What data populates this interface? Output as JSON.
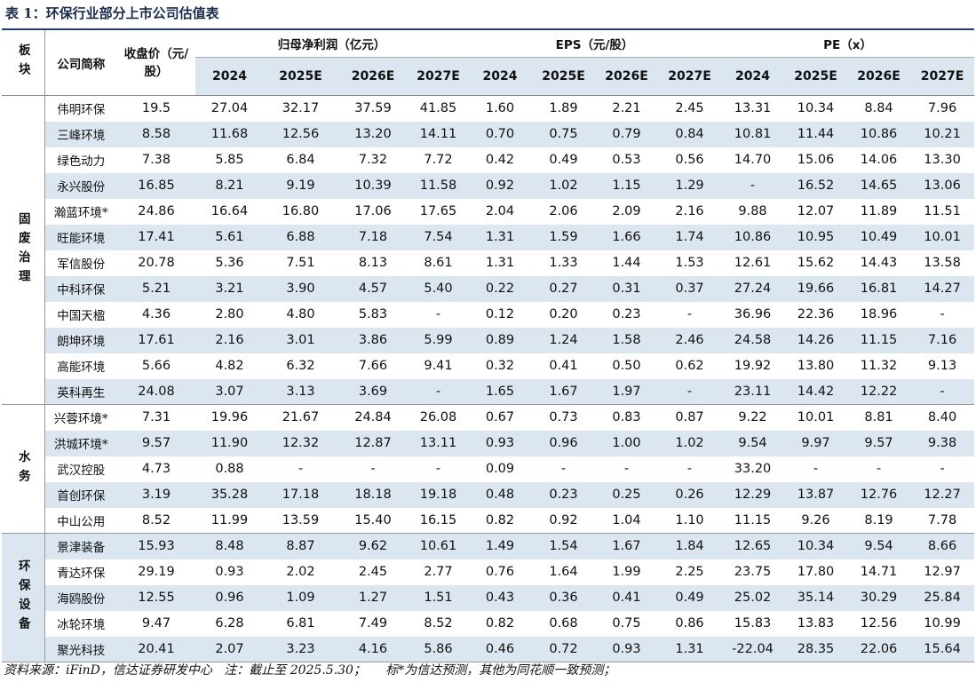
{
  "title": "表 1：环保行业部分上市公司估值表",
  "header": {
    "sector": "板块",
    "company": "公司简称",
    "price": "收盘价（元/股）",
    "groups": [
      {
        "title": "归母净利润（亿元）",
        "years": [
          "2024",
          "2025E",
          "2026E",
          "2027E"
        ]
      },
      {
        "title": "EPS（元/股）",
        "years": [
          "2024",
          "2025E",
          "2026E",
          "2027E"
        ]
      },
      {
        "title": "PE（x）",
        "years": [
          "2024",
          "2025E",
          "2026E",
          "2027E"
        ]
      }
    ]
  },
  "table": {
    "groups": [
      {
        "name": "固废治理",
        "rows": [
          [
            "伟明环保",
            "19.5",
            "27.04",
            "32.17",
            "37.59",
            "41.85",
            "1.60",
            "1.89",
            "2.21",
            "2.45",
            "13.31",
            "10.34",
            "8.84",
            "7.96"
          ],
          [
            "三峰环境",
            "8.58",
            "11.68",
            "12.56",
            "13.20",
            "14.11",
            "0.70",
            "0.75",
            "0.79",
            "0.84",
            "10.81",
            "11.44",
            "10.86",
            "10.21"
          ],
          [
            "绿色动力",
            "7.38",
            "5.85",
            "6.84",
            "7.32",
            "7.72",
            "0.42",
            "0.49",
            "0.53",
            "0.56",
            "14.70",
            "15.06",
            "14.06",
            "13.30"
          ],
          [
            "永兴股份",
            "16.85",
            "8.21",
            "9.19",
            "10.39",
            "11.58",
            "0.92",
            "1.02",
            "1.15",
            "1.29",
            "-",
            "16.52",
            "14.65",
            "13.06"
          ],
          [
            "瀚蓝环境*",
            "24.86",
            "16.64",
            "16.80",
            "17.06",
            "17.65",
            "2.04",
            "2.06",
            "2.09",
            "2.16",
            "9.88",
            "12.07",
            "11.89",
            "11.51"
          ],
          [
            "旺能环境",
            "17.41",
            "5.61",
            "6.88",
            "7.18",
            "7.54",
            "1.31",
            "1.59",
            "1.66",
            "1.74",
            "10.86",
            "10.95",
            "10.49",
            "10.01"
          ],
          [
            "军信股份",
            "20.78",
            "5.36",
            "7.51",
            "8.13",
            "8.61",
            "1.31",
            "1.33",
            "1.44",
            "1.53",
            "12.61",
            "15.62",
            "14.43",
            "13.58"
          ],
          [
            "中科环保",
            "5.21",
            "3.21",
            "3.90",
            "4.57",
            "5.40",
            "0.22",
            "0.27",
            "0.31",
            "0.37",
            "27.24",
            "19.66",
            "16.81",
            "14.27"
          ],
          [
            "中国天楹",
            "4.36",
            "2.80",
            "4.80",
            "5.83",
            "-",
            "0.12",
            "0.20",
            "0.23",
            "-",
            "36.96",
            "22.36",
            "18.96",
            "-"
          ],
          [
            "朗坤环境",
            "17.61",
            "2.16",
            "3.01",
            "3.86",
            "5.99",
            "0.89",
            "1.24",
            "1.58",
            "2.46",
            "24.58",
            "14.26",
            "11.15",
            "7.16"
          ],
          [
            "高能环境",
            "5.66",
            "4.82",
            "6.32",
            "7.66",
            "9.41",
            "0.32",
            "0.41",
            "0.50",
            "0.62",
            "19.92",
            "13.80",
            "11.32",
            "9.13"
          ],
          [
            "英科再生",
            "24.08",
            "3.07",
            "3.13",
            "3.69",
            "-",
            "1.65",
            "1.67",
            "1.97",
            "-",
            "23.11",
            "14.42",
            "12.22",
            "-"
          ]
        ]
      },
      {
        "name": "水务",
        "rows": [
          [
            "兴蓉环境*",
            "7.31",
            "19.96",
            "21.67",
            "24.84",
            "26.08",
            "0.67",
            "0.73",
            "0.83",
            "0.87",
            "9.22",
            "10.01",
            "8.81",
            "8.40"
          ],
          [
            "洪城环境*",
            "9.57",
            "11.90",
            "12.32",
            "12.87",
            "13.11",
            "0.93",
            "0.96",
            "1.00",
            "1.02",
            "9.54",
            "9.97",
            "9.57",
            "9.38"
          ],
          [
            "武汉控股",
            "4.73",
            "0.88",
            "-",
            "-",
            "-",
            "0.09",
            "-",
            "-",
            "-",
            "33.20",
            "-",
            "-",
            "-"
          ],
          [
            "首创环保",
            "3.19",
            "35.28",
            "17.18",
            "18.18",
            "19.18",
            "0.48",
            "0.23",
            "0.25",
            "0.26",
            "12.29",
            "13.87",
            "12.76",
            "12.27"
          ],
          [
            "中山公用",
            "8.52",
            "11.99",
            "13.59",
            "15.40",
            "16.15",
            "0.82",
            "0.92",
            "1.04",
            "1.10",
            "11.15",
            "9.26",
            "8.19",
            "7.78"
          ]
        ]
      },
      {
        "name": "环保设备",
        "rows": [
          [
            "景津装备",
            "15.93",
            "8.48",
            "8.87",
            "9.62",
            "10.61",
            "1.49",
            "1.54",
            "1.67",
            "1.84",
            "12.65",
            "10.34",
            "9.54",
            "8.66"
          ],
          [
            "青达环保",
            "29.19",
            "0.93",
            "2.02",
            "2.45",
            "2.77",
            "0.76",
            "1.64",
            "1.99",
            "2.25",
            "23.75",
            "17.80",
            "14.71",
            "12.97"
          ],
          [
            "海鸥股份",
            "12.55",
            "0.96",
            "1.09",
            "1.27",
            "1.51",
            "0.43",
            "0.36",
            "0.41",
            "0.49",
            "25.02",
            "35.14",
            "30.29",
            "25.84"
          ],
          [
            "冰轮环境",
            "9.47",
            "6.28",
            "6.81",
            "7.49",
            "8.52",
            "0.82",
            "0.68",
            "0.75",
            "0.86",
            "15.83",
            "13.83",
            "12.56",
            "10.99"
          ],
          [
            "聚光科技",
            "20.41",
            "2.07",
            "3.23",
            "4.16",
            "5.86",
            "0.46",
            "0.72",
            "0.93",
            "1.31",
            "-22.04",
            "28.35",
            "22.06",
            "15.64"
          ]
        ]
      }
    ]
  },
  "footer": "资料来源：iFinD，信达证券研发中心   注：截止至 2025.5.30；     标*为信达预测，其他为同花顺一致预测；"
}
